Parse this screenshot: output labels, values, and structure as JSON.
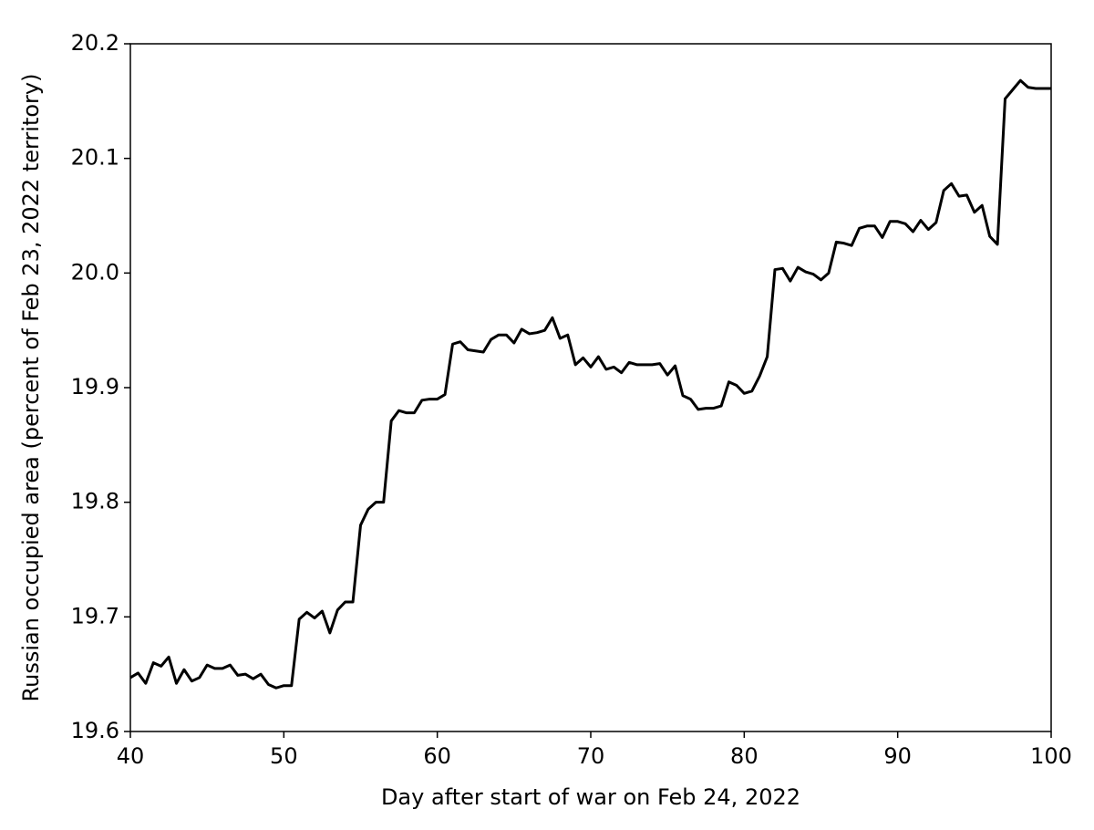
{
  "chart_data": {
    "type": "line",
    "xlabel": "Day after start of war on Feb 24, 2022",
    "ylabel": "Russian occupied area (percent of Feb 23, 2022 territory)",
    "x": [
      40,
      40.5,
      41,
      41.5,
      42,
      42.5,
      43,
      43.5,
      44,
      44.5,
      45,
      45.5,
      46,
      46.5,
      47,
      47.5,
      48,
      48.5,
      49,
      49.5,
      50,
      50.5,
      51,
      51.5,
      52,
      52.5,
      53,
      53.5,
      54,
      54.5,
      55,
      55.5,
      56,
      56.5,
      57,
      57.5,
      58,
      58.5,
      59,
      59.5,
      60,
      60.5,
      61,
      61.5,
      62,
      62.5,
      63,
      63.5,
      64,
      64.5,
      65,
      65.5,
      66,
      66.5,
      67,
      67.5,
      68,
      68.5,
      69,
      69.5,
      70,
      70.5,
      71,
      71.5,
      72,
      72.5,
      73,
      73.5,
      74,
      74.5,
      75,
      75.5,
      76,
      76.5,
      77,
      77.5,
      78,
      78.5,
      79,
      79.5,
      80,
      80.5,
      81,
      81.5,
      82,
      82.5,
      83,
      83.5,
      84,
      84.5,
      85,
      85.5,
      86,
      86.5,
      87,
      87.5,
      88,
      88.5,
      89,
      89.5,
      90,
      90.5,
      91,
      91.5,
      92,
      92.5,
      93,
      93.5,
      94,
      94.5,
      95,
      95.5,
      96,
      96.5,
      97,
      97.5,
      98,
      98.5,
      99,
      99.5,
      100
    ],
    "values": [
      19.647,
      19.651,
      19.642,
      19.66,
      19.657,
      19.665,
      19.642,
      19.654,
      19.644,
      19.647,
      19.658,
      19.655,
      19.655,
      19.658,
      19.649,
      19.65,
      19.646,
      19.65,
      19.641,
      19.638,
      19.64,
      19.64,
      19.698,
      19.704,
      19.699,
      19.705,
      19.686,
      19.706,
      19.713,
      19.713,
      19.78,
      19.794,
      19.8,
      19.8,
      19.871,
      19.88,
      19.878,
      19.878,
      19.889,
      19.89,
      19.89,
      19.894,
      19.938,
      19.94,
      19.933,
      19.932,
      19.931,
      19.942,
      19.946,
      19.946,
      19.939,
      19.951,
      19.947,
      19.948,
      19.95,
      19.961,
      19.943,
      19.946,
      19.92,
      19.926,
      19.918,
      19.927,
      19.916,
      19.918,
      19.913,
      19.922,
      19.92,
      19.92,
      19.92,
      19.921,
      19.911,
      19.919,
      19.893,
      19.89,
      19.881,
      19.882,
      19.882,
      19.884,
      19.905,
      19.902,
      19.895,
      19.897,
      19.91,
      19.927,
      20.003,
      20.004,
      19.993,
      20.005,
      20.001,
      19.999,
      19.994,
      20.0,
      20.027,
      20.026,
      20.024,
      20.039,
      20.041,
      20.041,
      20.031,
      20.045,
      20.045,
      20.043,
      20.036,
      20.046,
      20.038,
      20.044,
      20.072,
      20.078,
      20.067,
      20.068,
      20.053,
      20.059,
      20.032,
      20.025,
      20.152,
      20.16,
      20.168,
      20.162,
      20.161,
      20.161,
      20.161
    ],
    "color": "#000000",
    "xlim": [
      40,
      100
    ],
    "xticks": [
      40,
      50,
      60,
      70,
      80,
      90,
      100
    ],
    "ylim": [
      19.6,
      20.2
    ],
    "yticks": [
      19.6,
      19.7,
      19.8,
      19.9,
      {
        "value": 20,
        "label": "20.0"
      },
      20.1,
      20.2
    ]
  }
}
